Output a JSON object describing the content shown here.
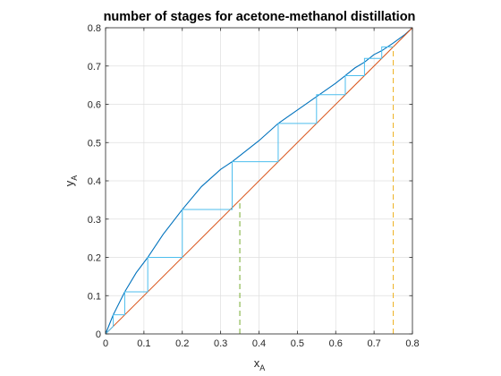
{
  "chart_data": {
    "type": "line",
    "title": "number of stages for acetone-methanol distillation",
    "xlabel": "x",
    "xlabel_sub": "A",
    "ylabel": "y",
    "ylabel_sub": "A",
    "xlim": [
      0,
      0.8
    ],
    "ylim": [
      0,
      0.8
    ],
    "xticks": [
      0,
      0.1,
      0.2,
      0.3,
      0.4,
      0.5,
      0.6,
      0.7,
      0.8
    ],
    "yticks": [
      0,
      0.1,
      0.2,
      0.3,
      0.4,
      0.5,
      0.6,
      0.7,
      0.8
    ],
    "xtick_labels": [
      "0",
      "0.1",
      "0.2",
      "0.3",
      "0.4",
      "0.5",
      "0.6",
      "0.7",
      "0.8"
    ],
    "ytick_labels": [
      "0",
      "0.1",
      "0.2",
      "0.3",
      "0.4",
      "0.5",
      "0.6",
      "0.7",
      "0.8"
    ],
    "grid": true,
    "series": [
      {
        "kind": "equilibrium-curve",
        "color": "#0072bd",
        "x": [
          0,
          0.02,
          0.05,
          0.08,
          0.11,
          0.15,
          0.2,
          0.25,
          0.3,
          0.33,
          0.4,
          0.45,
          0.5,
          0.55,
          0.6,
          0.625,
          0.65,
          0.675,
          0.7,
          0.72,
          0.75,
          0.78,
          0.8
        ],
        "y": [
          0,
          0.05,
          0.11,
          0.16,
          0.2,
          0.26,
          0.325,
          0.385,
          0.43,
          0.45,
          0.505,
          0.55,
          0.585,
          0.62,
          0.655,
          0.675,
          0.695,
          0.71,
          0.73,
          0.74,
          0.76,
          0.782,
          0.8
        ]
      },
      {
        "kind": "diagonal-line",
        "color": "#d95319",
        "x": [
          0,
          0.8
        ],
        "y": [
          0,
          0.8
        ]
      },
      {
        "kind": "stage-steps",
        "color": "#4dbeee",
        "x": [
          0.75,
          0.72,
          0.72,
          0.675,
          0.675,
          0.625,
          0.625,
          0.55,
          0.55,
          0.45,
          0.45,
          0.33,
          0.33,
          0.2,
          0.2,
          0.11,
          0.11,
          0.05,
          0.05,
          0.02,
          0.02,
          0
        ],
        "y": [
          0.75,
          0.75,
          0.72,
          0.72,
          0.675,
          0.675,
          0.625,
          0.625,
          0.55,
          0.55,
          0.45,
          0.45,
          0.325,
          0.325,
          0.2,
          0.2,
          0.11,
          0.11,
          0.05,
          0.05,
          0.02,
          0
        ]
      },
      {
        "kind": "dashed-vertical",
        "color": "#77ac30",
        "x": [
          0.35,
          0.35
        ],
        "y": [
          0,
          0.35
        ]
      },
      {
        "kind": "dashed-vertical",
        "color": "#edb120",
        "x": [
          0.75,
          0.75
        ],
        "y": [
          0,
          0.75
        ]
      }
    ]
  }
}
